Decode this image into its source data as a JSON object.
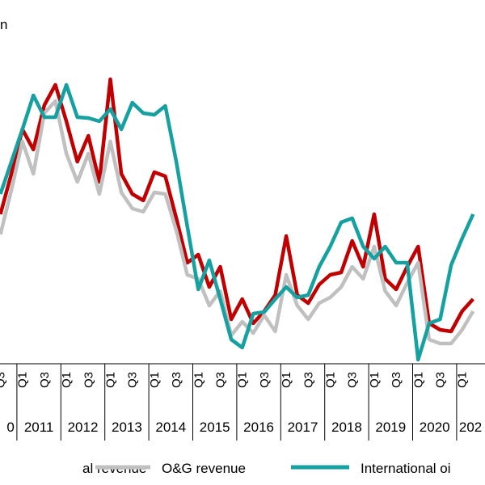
{
  "chart_data": {
    "type": "line",
    "title": "n",
    "categories": [
      "Q3",
      null,
      "Q1",
      null,
      "Q3",
      null,
      "Q1",
      null,
      "Q3",
      null,
      "Q1",
      null,
      "Q3",
      null,
      "Q1",
      null,
      "Q3",
      null,
      "Q1",
      null,
      "Q3",
      null,
      "Q1",
      null,
      "Q3",
      null,
      "Q1",
      null,
      "Q3",
      null,
      "Q1",
      null,
      "Q3",
      null,
      "Q1",
      null,
      "Q3",
      null,
      "Q1",
      null,
      "Q3",
      null,
      "Q1",
      null
    ],
    "year_labels": [
      "0",
      "2011",
      "2012",
      "2013",
      "2014",
      "2015",
      "2016",
      "2017",
      "2018",
      "2019",
      "2020",
      "202"
    ],
    "ylim": [
      0,
      450
    ],
    "series": [
      {
        "name": "al revenue",
        "color": "#c00000",
        "values": [
          185,
          235,
          290,
          265,
          320,
          345,
          300,
          250,
          282,
          225,
          352,
          235,
          210,
          202,
          237,
          232,
          180,
          125,
          135,
          95,
          120,
          55,
          80,
          50,
          65,
          85,
          158,
          85,
          75,
          98,
          110,
          113,
          152,
          120,
          185,
          105,
          92,
          120,
          145,
          50,
          42,
          40,
          65,
          80
        ]
      },
      {
        "name": "O&G revenue",
        "color": "#c0c0c0",
        "values": [
          160,
          215,
          275,
          235,
          310,
          325,
          260,
          225,
          260,
          210,
          275,
          212,
          192,
          188,
          212,
          210,
          165,
          110,
          105,
          72,
          90,
          35,
          52,
          38,
          60,
          40,
          110,
          72,
          55,
          75,
          82,
          95,
          120,
          105,
          145,
          90,
          72,
          100,
          125,
          30,
          25,
          25,
          42,
          65
        ]
      },
      {
        "name": "International oi",
        "color": "#16a0a0",
        "values": [
          210,
          250,
          290,
          332,
          305,
          305,
          345,
          305,
          304,
          300,
          315,
          290,
          323,
          310,
          308,
          319,
          250,
          170,
          92,
          128,
          80,
          30,
          20,
          62,
          64,
          80,
          95,
          82,
          85,
          120,
          145,
          175,
          180,
          145,
          130,
          145,
          125,
          125,
          5,
          50,
          55,
          122,
          155,
          185
        ]
      }
    ]
  }
}
